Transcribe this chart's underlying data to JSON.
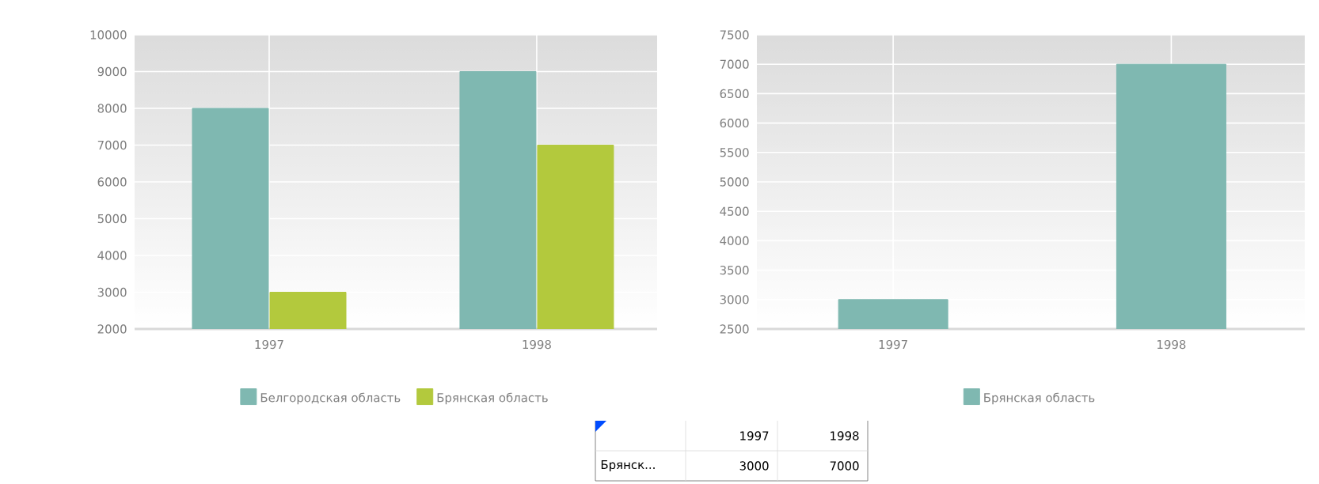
{
  "chart_data": [
    {
      "type": "bar",
      "categories": [
        "1997",
        "1998"
      ],
      "series": [
        {
          "name": "Белгородская область",
          "color": "#7fb8b1",
          "values": [
            8000,
            9000
          ]
        },
        {
          "name": "Брянская область",
          "color": "#b3c93d",
          "values": [
            3000,
            7000
          ]
        }
      ],
      "ylim": [
        2000,
        10000
      ],
      "yticks": [
        2000,
        3000,
        4000,
        5000,
        6000,
        7000,
        8000,
        9000,
        10000
      ],
      "grid": true,
      "legend": "bottom"
    },
    {
      "type": "bar",
      "categories": [
        "1997",
        "1998"
      ],
      "series": [
        {
          "name": "Брянская область",
          "color": "#7fb8b1",
          "values": [
            3000,
            7000
          ]
        }
      ],
      "ylim": [
        2500,
        7500
      ],
      "yticks": [
        2500,
        3000,
        3500,
        4000,
        4500,
        5000,
        5500,
        6000,
        6500,
        7000,
        7500
      ],
      "grid": true,
      "legend": "bottom",
      "annotations": [
        "1997",
        "1998",
        "Брянск...",
        "3000",
        "7000"
      ]
    }
  ]
}
